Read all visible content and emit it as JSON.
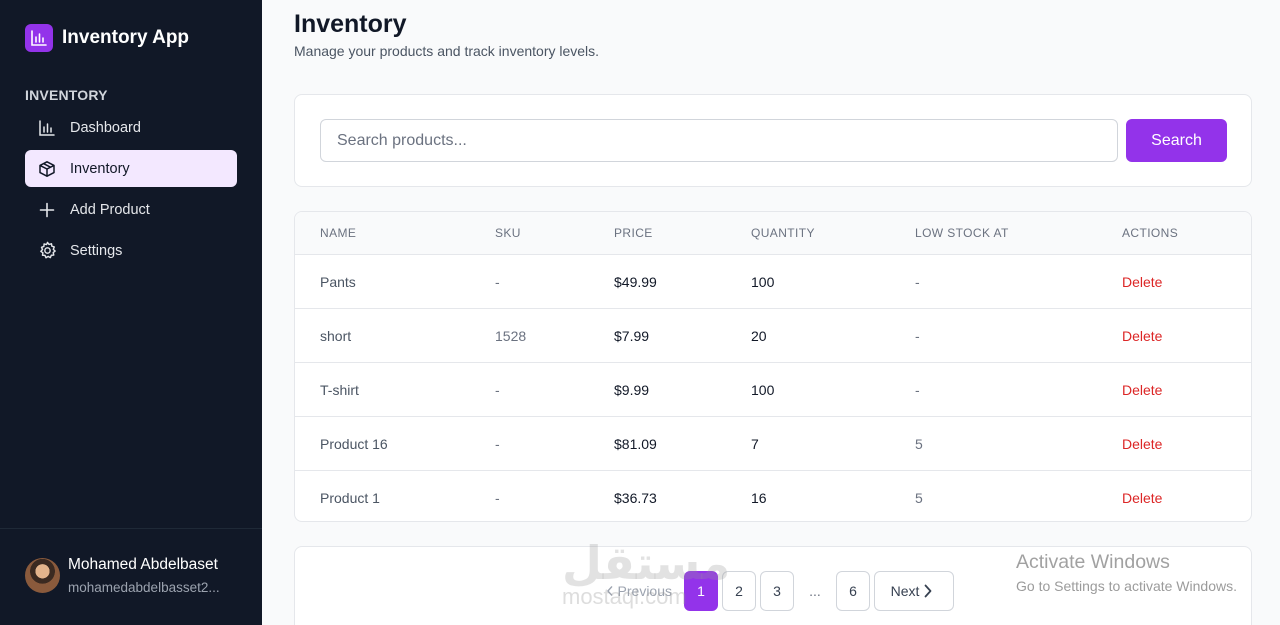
{
  "sidebar": {
    "app_name": "Inventory App",
    "section_label": "INVENTORY",
    "items": [
      {
        "label": "Dashboard",
        "icon": "bar-chart-icon",
        "active": false
      },
      {
        "label": "Inventory",
        "icon": "box-icon",
        "active": true
      },
      {
        "label": "Add Product",
        "icon": "plus-icon",
        "active": false
      },
      {
        "label": "Settings",
        "icon": "gear-icon",
        "active": false
      }
    ],
    "user": {
      "name": "Mohamed Abdelbaset",
      "email": "mohamedabdelbasset2..."
    }
  },
  "header": {
    "title": "Inventory",
    "subtitle": "Manage your products and track inventory levels."
  },
  "search": {
    "placeholder": "Search products...",
    "value": "",
    "button_label": "Search"
  },
  "table": {
    "columns": [
      "NAME",
      "SKU",
      "PRICE",
      "QUANTITY",
      "LOW STOCK AT",
      "ACTIONS"
    ],
    "rows": [
      {
        "name": "Pants",
        "sku": "-",
        "price": "$49.99",
        "quantity": "100",
        "low_stock": "-",
        "action": "Delete"
      },
      {
        "name": "short",
        "sku": "1528",
        "price": "$7.99",
        "quantity": "20",
        "low_stock": "-",
        "action": "Delete"
      },
      {
        "name": "T-shirt",
        "sku": "-",
        "price": "$9.99",
        "quantity": "100",
        "low_stock": "-",
        "action": "Delete"
      },
      {
        "name": "Product 16",
        "sku": "-",
        "price": "$81.09",
        "quantity": "7",
        "low_stock": "5",
        "action": "Delete"
      },
      {
        "name": "Product 1",
        "sku": "-",
        "price": "$36.73",
        "quantity": "16",
        "low_stock": "5",
        "action": "Delete"
      }
    ]
  },
  "pagination": {
    "previous_label": "Previous",
    "pages": [
      "1",
      "2",
      "3",
      "...",
      "6"
    ],
    "current_page": "1",
    "next_label": "Next"
  },
  "watermark": {
    "arabic": "مستقل",
    "url": "mostaql.com"
  },
  "os_overlay": {
    "title": "Activate Windows",
    "subtitle": "Go to Settings to activate Windows."
  },
  "colors": {
    "accent": "#9333ea",
    "sidebar_bg": "#111827",
    "active_item_bg": "#f3e8ff",
    "danger": "#dc2626"
  }
}
